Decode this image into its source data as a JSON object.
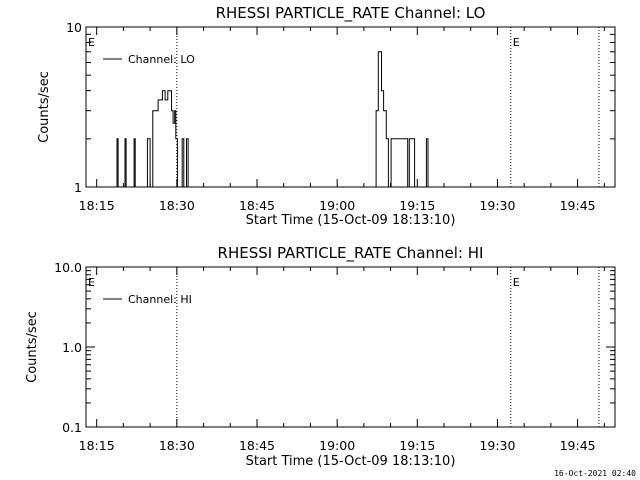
{
  "footer_timestamp": "16-Oct-2021 02:40",
  "chart_data": [
    {
      "type": "line",
      "title": "RHESSI PARTICLE_RATE Channel: LO",
      "xlabel": "Start Time (15-Oct-09 18:13:10)",
      "ylabel": "Counts/sec",
      "y_scale": "log",
      "ylim": [
        1,
        10
      ],
      "ytick_labels": [
        "1",
        "10"
      ],
      "xlim": [
        "18:13",
        "19:52"
      ],
      "xtick_labels": [
        "18:15",
        "18:30",
        "18:45",
        "19:00",
        "19:15",
        "19:30",
        "19:45"
      ],
      "legend": {
        "position": "top-left",
        "entries": [
          "Channel: LO"
        ]
      },
      "markers": [
        {
          "label": "E",
          "x": "18:13"
        },
        {
          "label": "E",
          "x": "19:32.5"
        }
      ],
      "vertical_dotted_lines": [
        "18:30",
        "19:32.5",
        "19:49"
      ],
      "series": [
        {
          "name": "Channel: LO",
          "points": [
            [
              "18:13",
              1
            ],
            [
              "18:18.8",
              1
            ],
            [
              "18:18.8",
              2
            ],
            [
              "18:19",
              2
            ],
            [
              "18:19",
              1
            ],
            [
              "18:20.3",
              1
            ],
            [
              "18:20.3",
              2
            ],
            [
              "18:20.5",
              2
            ],
            [
              "18:20.5",
              1
            ],
            [
              "18:22",
              1
            ],
            [
              "18:22",
              2
            ],
            [
              "18:22.2",
              2
            ],
            [
              "18:22.2",
              1
            ],
            [
              "18:24.5",
              1
            ],
            [
              "18:24.5",
              2
            ],
            [
              "18:25",
              2
            ],
            [
              "18:25",
              1
            ],
            [
              "18:25.5",
              1
            ],
            [
              "18:25.5",
              3
            ],
            [
              "18:26.5",
              3
            ],
            [
              "18:26.5",
              3.5
            ],
            [
              "18:27.3",
              3.5
            ],
            [
              "18:27.3",
              4
            ],
            [
              "18:27.8",
              4
            ],
            [
              "18:27.8",
              3.5
            ],
            [
              "18:28.3",
              3.5
            ],
            [
              "18:28.3",
              4
            ],
            [
              "18:29",
              4
            ],
            [
              "18:29",
              3
            ],
            [
              "18:29.3",
              3
            ],
            [
              "18:29.3",
              2.5
            ],
            [
              "18:29.6",
              2.5
            ],
            [
              "18:29.6",
              3
            ],
            [
              "18:29.8",
              3
            ],
            [
              "18:29.8",
              2
            ],
            [
              "18:30.1",
              2
            ],
            [
              "18:30.1",
              1
            ],
            [
              "18:31",
              1
            ],
            [
              "18:31",
              2
            ],
            [
              "18:31.3",
              2
            ],
            [
              "18:31.3",
              1
            ],
            [
              "18:31.8",
              1
            ],
            [
              "18:31.8",
              2
            ],
            [
              "18:32.1",
              2
            ],
            [
              "18:32.1",
              1
            ],
            [
              "19:07.3",
              1
            ],
            [
              "19:07.3",
              3
            ],
            [
              "19:07.7",
              3
            ],
            [
              "19:07.7",
              7
            ],
            [
              "19:08.3",
              7
            ],
            [
              "19:08.3",
              4
            ],
            [
              "19:08.7",
              4
            ],
            [
              "19:08.7",
              3
            ],
            [
              "19:09.2",
              3
            ],
            [
              "19:09.2",
              2
            ],
            [
              "19:09.6",
              2
            ],
            [
              "19:09.6",
              1
            ],
            [
              "19:10.1",
              1
            ],
            [
              "19:10.1",
              2
            ],
            [
              "19:13.2",
              2
            ],
            [
              "19:13.2",
              1
            ],
            [
              "19:13.5",
              1
            ],
            [
              "19:13.5",
              2
            ],
            [
              "19:14.5",
              2
            ],
            [
              "19:14.5",
              1
            ],
            [
              "19:16.7",
              1
            ],
            [
              "19:16.7",
              2
            ],
            [
              "19:17",
              2
            ],
            [
              "19:17",
              1
            ],
            [
              "19:52",
              1
            ]
          ]
        }
      ]
    },
    {
      "type": "line",
      "title": "RHESSI PARTICLE_RATE Channel: HI",
      "xlabel": "Start Time (15-Oct-09 18:13:10)",
      "ylabel": "Counts/sec",
      "y_scale": "log",
      "ylim": [
        0.1,
        10
      ],
      "ytick_labels": [
        "0.1",
        "1.0",
        "10.0"
      ],
      "xlim": [
        "18:13",
        "19:52"
      ],
      "xtick_labels": [
        "18:15",
        "18:30",
        "18:45",
        "19:00",
        "19:15",
        "19:30",
        "19:45"
      ],
      "legend": {
        "position": "top-left",
        "entries": [
          "Channel: HI"
        ]
      },
      "markers": [
        {
          "label": "E",
          "x": "18:13"
        },
        {
          "label": "E",
          "x": "19:32.5"
        }
      ],
      "vertical_dotted_lines": [
        "18:30",
        "19:32.5",
        "19:49"
      ],
      "series": [
        {
          "name": "Channel: HI",
          "points": []
        }
      ]
    }
  ]
}
